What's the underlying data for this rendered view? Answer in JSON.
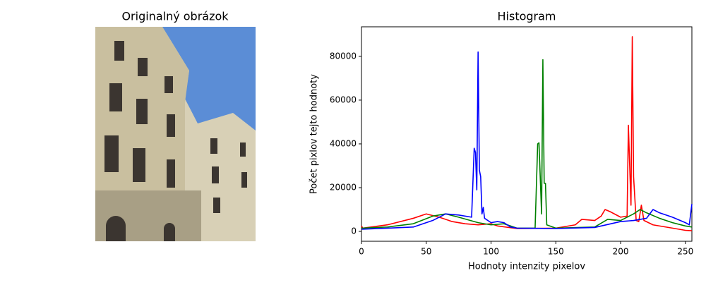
{
  "chart_data": [
    {
      "type": "image",
      "title": "Originalný obrázok"
    },
    {
      "type": "line",
      "title": "Histogram",
      "xlabel": "Hodnoty intenzity pixelov",
      "ylabel": "Počet pixlov tejto hodnoty",
      "xlim": [
        0,
        255
      ],
      "ylim": [
        -4500,
        93500
      ],
      "xticks": [
        0,
        50,
        100,
        150,
        200,
        250
      ],
      "yticks": [
        0,
        20000,
        40000,
        60000,
        80000
      ],
      "series": [
        {
          "name": "red",
          "color": "#ff0000",
          "x": [
            0,
            1,
            20,
            40,
            50,
            60,
            70,
            80,
            90,
            100,
            105,
            120,
            150,
            165,
            170,
            180,
            185,
            188,
            192,
            200,
            205,
            206,
            207,
            208,
            209,
            210,
            212,
            214,
            216,
            218,
            225,
            240,
            250,
            255
          ],
          "values": [
            2500,
            1500,
            3000,
            6000,
            8000,
            6500,
            4500,
            3500,
            3000,
            3500,
            2500,
            1300,
            1500,
            3000,
            5500,
            5000,
            7000,
            10000,
            9000,
            6500,
            7000,
            48500,
            30000,
            12000,
            89000,
            25000,
            5000,
            4500,
            12000,
            5000,
            3000,
            1500,
            500,
            300
          ]
        },
        {
          "name": "green",
          "color": "#008000",
          "x": [
            0,
            20,
            40,
            55,
            65,
            75,
            90,
            100,
            110,
            120,
            134,
            136,
            137,
            139,
            140,
            141,
            142,
            143,
            150,
            180,
            190,
            200,
            210,
            215,
            220,
            230,
            240,
            250,
            255
          ],
          "values": [
            1500,
            2000,
            3500,
            7000,
            8000,
            6500,
            4000,
            3000,
            3500,
            1500,
            1500,
            40000,
            40500,
            8000,
            78500,
            22000,
            22000,
            3000,
            1500,
            2000,
            5500,
            5000,
            8000,
            10000,
            8500,
            6000,
            4000,
            2500,
            2000
          ]
        },
        {
          "name": "blue",
          "color": "#0000ff",
          "x": [
            0,
            20,
            40,
            55,
            65,
            75,
            85,
            87,
            88,
            89,
            90,
            91,
            92,
            93,
            94,
            95,
            100,
            105,
            110,
            115,
            120,
            150,
            180,
            200,
            210,
            220,
            225,
            230,
            240,
            250,
            253,
            255
          ],
          "values": [
            1000,
            1500,
            2000,
            5000,
            8000,
            7500,
            6500,
            38000,
            36000,
            19000,
            82000,
            28000,
            25000,
            8000,
            11000,
            6000,
            4000,
            4500,
            4000,
            2000,
            1500,
            1300,
            1800,
            4500,
            5000,
            6000,
            10000,
            8500,
            6500,
            4000,
            3000,
            12500
          ]
        }
      ]
    }
  ]
}
